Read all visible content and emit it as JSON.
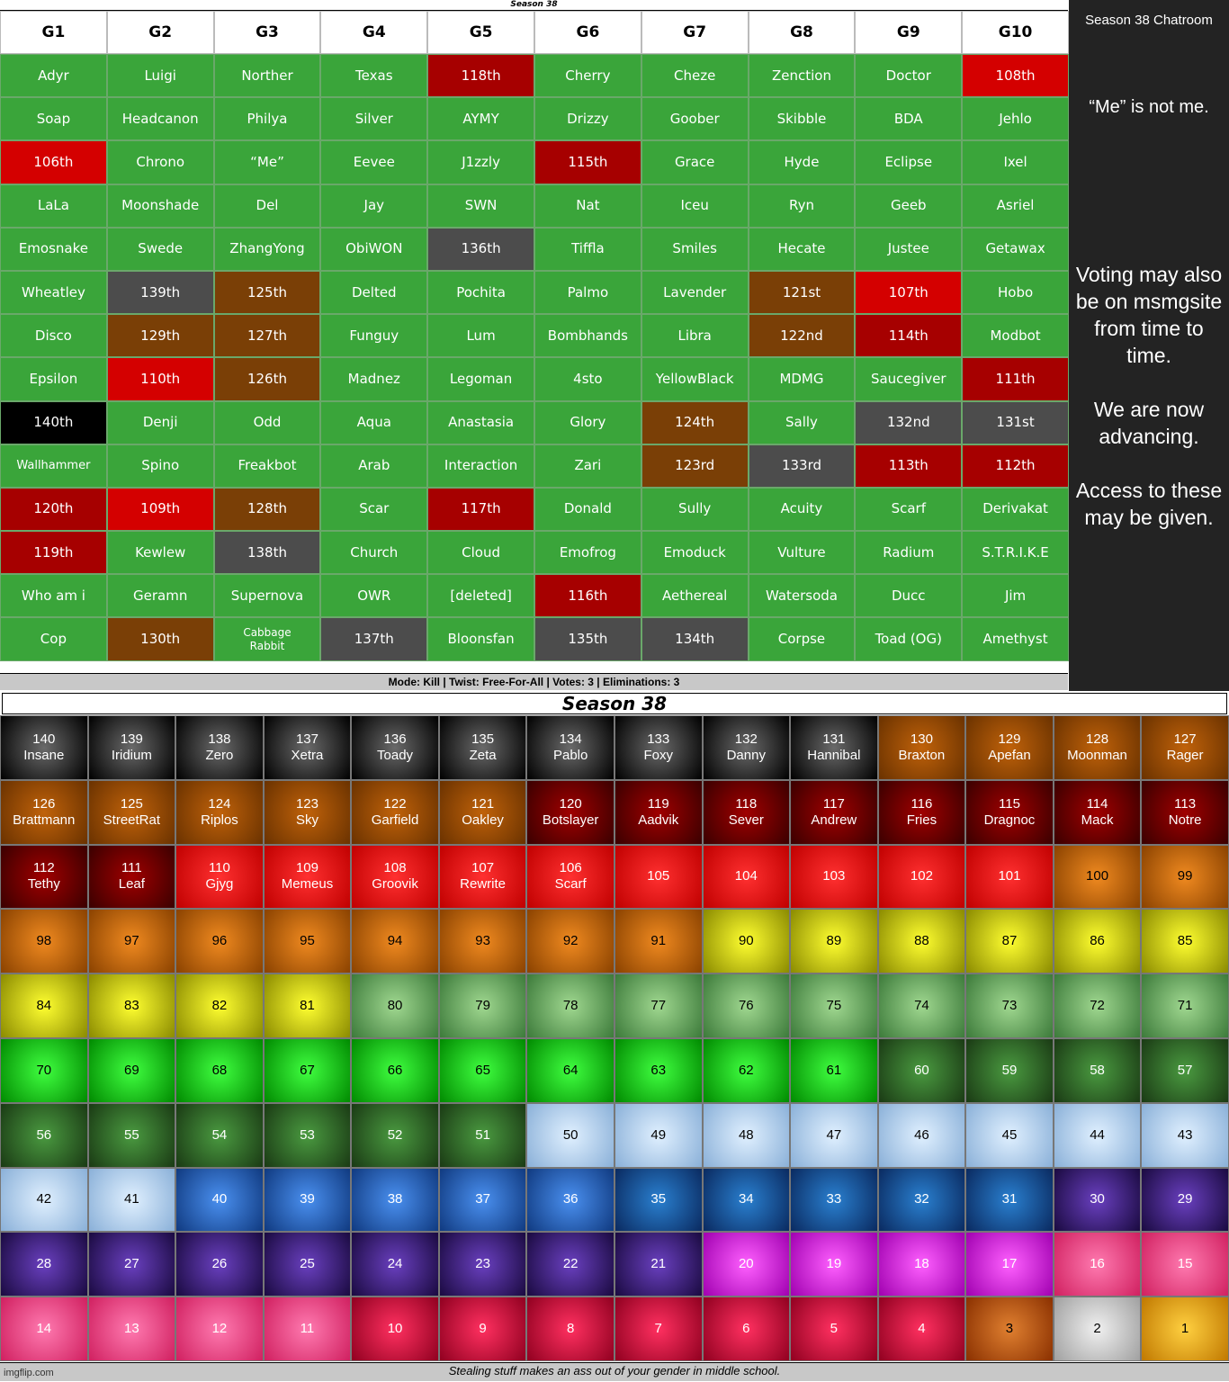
{
  "top_board": {
    "strip_title": "Season 38",
    "headers": [
      "G1",
      "G2",
      "G3",
      "G4",
      "G5",
      "G6",
      "G7",
      "G8",
      "G9",
      "G10"
    ],
    "rows": [
      [
        [
          "Adyr",
          "green"
        ],
        [
          "Luigi",
          "green"
        ],
        [
          "Norther",
          "green"
        ],
        [
          "Texas",
          "green"
        ],
        [
          "118th",
          "darkred"
        ],
        [
          "Cherry",
          "green"
        ],
        [
          "Cheze",
          "green"
        ],
        [
          "Zenction",
          "green"
        ],
        [
          "Doctor",
          "green"
        ],
        [
          "108th",
          "red"
        ]
      ],
      [
        [
          "Soap",
          "green"
        ],
        [
          "Headcanon",
          "green"
        ],
        [
          "Philya",
          "green"
        ],
        [
          "Silver",
          "green"
        ],
        [
          "AYMY",
          "green"
        ],
        [
          "Drizzy",
          "green"
        ],
        [
          "Goober",
          "green"
        ],
        [
          "Skibble",
          "green"
        ],
        [
          "BDA",
          "green"
        ],
        [
          "Jehlo",
          "green"
        ]
      ],
      [
        [
          "106th",
          "red"
        ],
        [
          "Chrono",
          "green"
        ],
        [
          "“Me”",
          "green"
        ],
        [
          "Eevee",
          "green"
        ],
        [
          "J1zzly",
          "green"
        ],
        [
          "115th",
          "darkred"
        ],
        [
          "Grace",
          "green"
        ],
        [
          "Hyde",
          "green"
        ],
        [
          "Eclipse",
          "green"
        ],
        [
          "Ixel",
          "green"
        ]
      ],
      [
        [
          "LaLa",
          "green"
        ],
        [
          "Moonshade",
          "green"
        ],
        [
          "Del",
          "green"
        ],
        [
          "Jay",
          "green"
        ],
        [
          "SWN",
          "green"
        ],
        [
          "Nat",
          "green"
        ],
        [
          "Iceu",
          "green"
        ],
        [
          "Ryn",
          "green"
        ],
        [
          "Geeb",
          "green"
        ],
        [
          "Asriel",
          "green"
        ]
      ],
      [
        [
          "Emosnake",
          "green"
        ],
        [
          "Swede",
          "green"
        ],
        [
          "ZhangYong",
          "green"
        ],
        [
          "ObiWON",
          "green"
        ],
        [
          "136th",
          "gray"
        ],
        [
          "Tiffla",
          "green"
        ],
        [
          "Smiles",
          "green"
        ],
        [
          "Hecate",
          "green"
        ],
        [
          "Justee",
          "green"
        ],
        [
          "Getawax",
          "green"
        ]
      ],
      [
        [
          "Wheatley",
          "green"
        ],
        [
          "139th",
          "gray"
        ],
        [
          "125th",
          "brown"
        ],
        [
          "Delted",
          "green"
        ],
        [
          "Pochita",
          "green"
        ],
        [
          "Palmo",
          "green"
        ],
        [
          "Lavender",
          "green"
        ],
        [
          "121st",
          "brown"
        ],
        [
          "107th",
          "red"
        ],
        [
          "Hobo",
          "green"
        ]
      ],
      [
        [
          "Disco",
          "green"
        ],
        [
          "129th",
          "brown"
        ],
        [
          "127th",
          "brown"
        ],
        [
          "Funguy",
          "green"
        ],
        [
          "Lum",
          "green"
        ],
        [
          "Bombhands",
          "green"
        ],
        [
          "Libra",
          "green"
        ],
        [
          "122nd",
          "brown"
        ],
        [
          "114th",
          "darkred"
        ],
        [
          "Modbot",
          "green"
        ]
      ],
      [
        [
          "Epsilon",
          "green"
        ],
        [
          "110th",
          "red"
        ],
        [
          "126th",
          "brown"
        ],
        [
          "Madnez",
          "green"
        ],
        [
          "Legoman",
          "green"
        ],
        [
          "4sto",
          "green"
        ],
        [
          "YellowBlack",
          "green"
        ],
        [
          "MDMG",
          "green"
        ],
        [
          "Saucegiver",
          "green"
        ],
        [
          "111th",
          "darkred"
        ]
      ],
      [
        [
          "140th",
          "black"
        ],
        [
          "Denji",
          "green"
        ],
        [
          "Odd",
          "green"
        ],
        [
          "Aqua",
          "green"
        ],
        [
          "Anastasia",
          "green"
        ],
        [
          "Glory",
          "green"
        ],
        [
          "124th",
          "brown"
        ],
        [
          "Sally",
          "green"
        ],
        [
          "132nd",
          "gray"
        ],
        [
          "131st",
          "gray"
        ]
      ],
      [
        [
          "Wallhammer",
          "green tiny"
        ],
        [
          "Spino",
          "green"
        ],
        [
          "Freakbot",
          "green"
        ],
        [
          "Arab",
          "green"
        ],
        [
          "Interaction",
          "green"
        ],
        [
          "Zari",
          "green"
        ],
        [
          "123rd",
          "brown"
        ],
        [
          "133rd",
          "gray"
        ],
        [
          "113th",
          "darkred"
        ],
        [
          "112th",
          "darkred"
        ]
      ],
      [
        [
          "120th",
          "darkred"
        ],
        [
          "109th",
          "red"
        ],
        [
          "128th",
          "brown"
        ],
        [
          "Scar",
          "green"
        ],
        [
          "117th",
          "darkred"
        ],
        [
          "Donald",
          "green"
        ],
        [
          "Sully",
          "green"
        ],
        [
          "Acuity",
          "green"
        ],
        [
          "Scarf",
          "green"
        ],
        [
          "Derivakat",
          "green"
        ]
      ],
      [
        [
          "119th",
          "darkred"
        ],
        [
          "Kewlew",
          "green"
        ],
        [
          "138th",
          "gray"
        ],
        [
          "Church",
          "green"
        ],
        [
          "Cloud",
          "green"
        ],
        [
          "Emofrog",
          "green"
        ],
        [
          "Emoduck",
          "green"
        ],
        [
          "Vulture",
          "green"
        ],
        [
          "Radium",
          "green"
        ],
        [
          "S.T.R.I.K.E",
          "green"
        ]
      ],
      [
        [
          "Who am i",
          "green"
        ],
        [
          "Geramn",
          "green"
        ],
        [
          "Supernova",
          "green"
        ],
        [
          "OWR",
          "green"
        ],
        [
          "[deleted]",
          "green"
        ],
        [
          "116th",
          "darkred"
        ],
        [
          "Aethereal",
          "green"
        ],
        [
          "Watersoda",
          "green"
        ],
        [
          "Ducc",
          "green"
        ],
        [
          "Jim",
          "green"
        ]
      ],
      [
        [
          "Cop",
          "green"
        ],
        [
          "130th",
          "brown"
        ],
        [
          "Cabbage\nRabbit",
          "green small"
        ],
        [
          "137th",
          "gray"
        ],
        [
          "Bloonsfan",
          "green"
        ],
        [
          "135th",
          "gray"
        ],
        [
          "134th",
          "gray"
        ],
        [
          "Corpse",
          "green"
        ],
        [
          "Toad (OG)",
          "green"
        ],
        [
          "Amethyst",
          "green"
        ]
      ]
    ],
    "mode_line": "Mode: Kill | Twist: Free-For-All | Votes: 3 | Eliminations: 3"
  },
  "chatroom": {
    "title": "Season 38 Chatroom",
    "note": "“Me” is not me.",
    "message": "Voting may also be on msmgsite from time to time.\n\nWe are now advancing.\n\nAccess to these may be given."
  },
  "rankings": {
    "title": "Season 38",
    "colors": {
      "black": [
        "#6a6a6a",
        "#000000",
        "#ffffff"
      ],
      "brown": [
        "#c0620a",
        "#6a3200",
        "#ffffff"
      ],
      "maroon": [
        "#a00000",
        "#3a0000",
        "#ffffff"
      ],
      "red": [
        "#ff3030",
        "#c00000",
        "#ffffff"
      ],
      "orange": [
        "#f08a20",
        "#8a4200",
        "#000000"
      ],
      "yellow": [
        "#ffff30",
        "#8a8a00",
        "#000000"
      ],
      "sage": [
        "#a0d890",
        "#3c7a3a",
        "#000000"
      ],
      "lime": [
        "#40ff40",
        "#008a00",
        "#000000"
      ],
      "forest": [
        "#4a9a40",
        "#1a3a14",
        "#ffffff"
      ],
      "ice": [
        "#e0f0ff",
        "#8ab0d8",
        "#000000"
      ],
      "blue": [
        "#4a90f0",
        "#103a80",
        "#ffffff"
      ],
      "navy": [
        "#2a80d0",
        "#0a2a60",
        "#ffffff"
      ],
      "purple": [
        "#6a40c0",
        "#1a0a40",
        "#ffffff"
      ],
      "magenta": [
        "#ff60ff",
        "#a000b0",
        "#ffffff"
      ],
      "pink": [
        "#ff7ab0",
        "#d02060",
        "#ffffff"
      ],
      "crimson": [
        "#ff3060",
        "#900020",
        "#ffffff"
      ],
      "bronze": [
        "#e08030",
        "#8a3000",
        "#000000"
      ],
      "silver": [
        "#f0f0f0",
        "#a0a0a0",
        "#000000"
      ],
      "gold": [
        "#ffd040",
        "#c07800",
        "#000000"
      ]
    },
    "cells": [
      [
        "140",
        "Insane",
        "black"
      ],
      [
        "139",
        "Iridium",
        "black"
      ],
      [
        "138",
        "Zero",
        "black"
      ],
      [
        "137",
        "Xetra",
        "black"
      ],
      [
        "136",
        "Toady",
        "black"
      ],
      [
        "135",
        "Zeta",
        "black"
      ],
      [
        "134",
        "Pablo",
        "black"
      ],
      [
        "133",
        "Foxy",
        "black"
      ],
      [
        "132",
        "Danny",
        "black"
      ],
      [
        "131",
        "Hannibal",
        "black"
      ],
      [
        "130",
        "Braxton",
        "brown"
      ],
      [
        "129",
        "Apefan",
        "brown"
      ],
      [
        "128",
        "Moonman",
        "brown"
      ],
      [
        "127",
        "Rager",
        "brown"
      ],
      [
        "126",
        "Brattmann",
        "brown"
      ],
      [
        "125",
        "StreetRat",
        "brown"
      ],
      [
        "124",
        "Riplos",
        "brown"
      ],
      [
        "123",
        "Sky",
        "brown"
      ],
      [
        "122",
        "Garfield",
        "brown"
      ],
      [
        "121",
        "Oakley",
        "brown"
      ],
      [
        "120",
        "Botslayer",
        "maroon"
      ],
      [
        "119",
        "Aadvik",
        "maroon"
      ],
      [
        "118",
        "Sever",
        "maroon"
      ],
      [
        "117",
        "Andrew",
        "maroon"
      ],
      [
        "116",
        "Fries",
        "maroon"
      ],
      [
        "115",
        "Dragnoc",
        "maroon"
      ],
      [
        "114",
        "Mack",
        "maroon"
      ],
      [
        "113",
        "Notre",
        "maroon"
      ],
      [
        "112",
        "Tethy",
        "maroon"
      ],
      [
        "111",
        "Leaf",
        "maroon"
      ],
      [
        "110",
        "Gjyg",
        "red"
      ],
      [
        "109",
        "Memeus",
        "red"
      ],
      [
        "108",
        "Groovik",
        "red"
      ],
      [
        "107",
        "Rewrite",
        "red"
      ],
      [
        "106",
        "Scarf",
        "red"
      ],
      [
        "105",
        "",
        "red"
      ],
      [
        "104",
        "",
        "red"
      ],
      [
        "103",
        "",
        "red"
      ],
      [
        "102",
        "",
        "red"
      ],
      [
        "101",
        "",
        "red"
      ],
      [
        "100",
        "",
        "orange"
      ],
      [
        "99",
        "",
        "orange"
      ],
      [
        "98",
        "",
        "orange"
      ],
      [
        "97",
        "",
        "orange"
      ],
      [
        "96",
        "",
        "orange"
      ],
      [
        "95",
        "",
        "orange"
      ],
      [
        "94",
        "",
        "orange"
      ],
      [
        "93",
        "",
        "orange"
      ],
      [
        "92",
        "",
        "orange"
      ],
      [
        "91",
        "",
        "orange"
      ],
      [
        "90",
        "",
        "yellow"
      ],
      [
        "89",
        "",
        "yellow"
      ],
      [
        "88",
        "",
        "yellow"
      ],
      [
        "87",
        "",
        "yellow"
      ],
      [
        "86",
        "",
        "yellow"
      ],
      [
        "85",
        "",
        "yellow"
      ],
      [
        "84",
        "",
        "yellow"
      ],
      [
        "83",
        "",
        "yellow"
      ],
      [
        "82",
        "",
        "yellow"
      ],
      [
        "81",
        "",
        "yellow"
      ],
      [
        "80",
        "",
        "sage"
      ],
      [
        "79",
        "",
        "sage"
      ],
      [
        "78",
        "",
        "sage"
      ],
      [
        "77",
        "",
        "sage"
      ],
      [
        "76",
        "",
        "sage"
      ],
      [
        "75",
        "",
        "sage"
      ],
      [
        "74",
        "",
        "sage"
      ],
      [
        "73",
        "",
        "sage"
      ],
      [
        "72",
        "",
        "sage"
      ],
      [
        "71",
        "",
        "sage"
      ],
      [
        "70",
        "",
        "lime"
      ],
      [
        "69",
        "",
        "lime"
      ],
      [
        "68",
        "",
        "lime"
      ],
      [
        "67",
        "",
        "lime"
      ],
      [
        "66",
        "",
        "lime"
      ],
      [
        "65",
        "",
        "lime"
      ],
      [
        "64",
        "",
        "lime"
      ],
      [
        "63",
        "",
        "lime"
      ],
      [
        "62",
        "",
        "lime"
      ],
      [
        "61",
        "",
        "lime"
      ],
      [
        "60",
        "",
        "forest"
      ],
      [
        "59",
        "",
        "forest"
      ],
      [
        "58",
        "",
        "forest"
      ],
      [
        "57",
        "",
        "forest"
      ],
      [
        "56",
        "",
        "forest"
      ],
      [
        "55",
        "",
        "forest"
      ],
      [
        "54",
        "",
        "forest"
      ],
      [
        "53",
        "",
        "forest"
      ],
      [
        "52",
        "",
        "forest"
      ],
      [
        "51",
        "",
        "forest"
      ],
      [
        "50",
        "",
        "ice"
      ],
      [
        "49",
        "",
        "ice"
      ],
      [
        "48",
        "",
        "ice"
      ],
      [
        "47",
        "",
        "ice"
      ],
      [
        "46",
        "",
        "ice"
      ],
      [
        "45",
        "",
        "ice"
      ],
      [
        "44",
        "",
        "ice"
      ],
      [
        "43",
        "",
        "ice"
      ],
      [
        "42",
        "",
        "ice"
      ],
      [
        "41",
        "",
        "ice"
      ],
      [
        "40",
        "",
        "blue"
      ],
      [
        "39",
        "",
        "blue"
      ],
      [
        "38",
        "",
        "blue"
      ],
      [
        "37",
        "",
        "blue"
      ],
      [
        "36",
        "",
        "blue"
      ],
      [
        "35",
        "",
        "navy"
      ],
      [
        "34",
        "",
        "navy"
      ],
      [
        "33",
        "",
        "navy"
      ],
      [
        "32",
        "",
        "navy"
      ],
      [
        "31",
        "",
        "navy"
      ],
      [
        "30",
        "",
        "purple"
      ],
      [
        "29",
        "",
        "purple"
      ],
      [
        "28",
        "",
        "purple"
      ],
      [
        "27",
        "",
        "purple"
      ],
      [
        "26",
        "",
        "purple"
      ],
      [
        "25",
        "",
        "purple"
      ],
      [
        "24",
        "",
        "purple"
      ],
      [
        "23",
        "",
        "purple"
      ],
      [
        "22",
        "",
        "purple"
      ],
      [
        "21",
        "",
        "purple"
      ],
      [
        "20",
        "",
        "magenta"
      ],
      [
        "19",
        "",
        "magenta"
      ],
      [
        "18",
        "",
        "magenta"
      ],
      [
        "17",
        "",
        "magenta"
      ],
      [
        "16",
        "",
        "pink"
      ],
      [
        "15",
        "",
        "pink"
      ],
      [
        "14",
        "",
        "pink"
      ],
      [
        "13",
        "",
        "pink"
      ],
      [
        "12",
        "",
        "pink"
      ],
      [
        "11",
        "",
        "pink"
      ],
      [
        "10",
        "",
        "crimson"
      ],
      [
        "9",
        "",
        "crimson"
      ],
      [
        "8",
        "",
        "crimson"
      ],
      [
        "7",
        "",
        "crimson"
      ],
      [
        "6",
        "",
        "crimson"
      ],
      [
        "5",
        "",
        "crimson"
      ],
      [
        "4",
        "",
        "crimson"
      ],
      [
        "3",
        "",
        "bronze"
      ],
      [
        "2",
        "",
        "silver"
      ],
      [
        "1",
        "",
        "gold"
      ]
    ],
    "footer": "Stealing stuff makes an ass out of your gender in middle school.",
    "watermark": "imgflip.com"
  }
}
